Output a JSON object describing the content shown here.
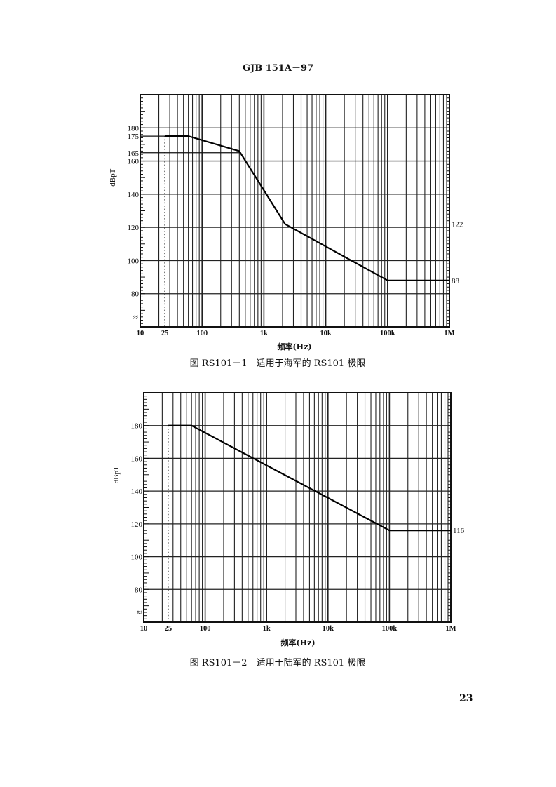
{
  "header": {
    "doc_id": "GJB 151A－97"
  },
  "page_number": "23",
  "chart_data": [
    {
      "type": "line",
      "caption": "图 RS101－1　适用于海军的 RS101 极限",
      "xlabel": "频率(Hz)",
      "ylabel": "dBpT",
      "x_scale": "log",
      "xlim": [
        10,
        1000000
      ],
      "ylim": [
        60,
        200
      ],
      "y_axis_break": true,
      "grid": true,
      "x_tick_labels": [
        {
          "v": 10,
          "t": "10"
        },
        {
          "v": 25,
          "t": "25"
        },
        {
          "v": 100,
          "t": "100"
        },
        {
          "v": 1000,
          "t": "1k"
        },
        {
          "v": 10000,
          "t": "10k"
        },
        {
          "v": 100000,
          "t": "100k"
        },
        {
          "v": 1000000,
          "t": "1M"
        }
      ],
      "y_tick_labels": [
        {
          "v": 80,
          "t": "80"
        },
        {
          "v": 100,
          "t": "100"
        },
        {
          "v": 120,
          "t": "120"
        },
        {
          "v": 140,
          "t": "140"
        },
        {
          "v": 160,
          "t": "160"
        },
        {
          "v": 165,
          "t": "165"
        },
        {
          "v": 175,
          "t": "175"
        },
        {
          "v": 180,
          "t": "180"
        }
      ],
      "right_labels": [
        {
          "v": 122,
          "t": "122"
        },
        {
          "v": 88,
          "t": "88"
        }
      ],
      "reference_lines": [
        165,
        175
      ],
      "dotted_marker_x": 25,
      "series": [
        {
          "x": [
            25,
            60,
            400,
            2200,
            100000,
            1000000
          ],
          "y": [
            175,
            175,
            166,
            122,
            88,
            88
          ]
        }
      ]
    },
    {
      "type": "line",
      "caption": "图 RS101－2　适用于陆军的 RS101 极限",
      "xlabel": "频率(Hz)",
      "ylabel": "dBpT",
      "x_scale": "log",
      "xlim": [
        10,
        1000000
      ],
      "ylim": [
        60,
        200
      ],
      "y_axis_break": true,
      "grid": true,
      "x_tick_labels": [
        {
          "v": 10,
          "t": "10"
        },
        {
          "v": 25,
          "t": "25"
        },
        {
          "v": 100,
          "t": "100"
        },
        {
          "v": 1000,
          "t": "1k"
        },
        {
          "v": 10000,
          "t": "10k"
        },
        {
          "v": 100000,
          "t": "100k"
        },
        {
          "v": 1000000,
          "t": "1M"
        }
      ],
      "y_tick_labels": [
        {
          "v": 80,
          "t": "80"
        },
        {
          "v": 100,
          "t": "100"
        },
        {
          "v": 120,
          "t": "120"
        },
        {
          "v": 140,
          "t": "140"
        },
        {
          "v": 160,
          "t": "160"
        },
        {
          "v": 180,
          "t": "180"
        }
      ],
      "right_labels": [
        {
          "v": 116,
          "t": "116"
        }
      ],
      "reference_lines": [],
      "dotted_marker_x": 25,
      "series": [
        {
          "x": [
            25,
            60,
            100000,
            1000000
          ],
          "y": [
            180,
            180,
            116,
            116
          ]
        }
      ]
    }
  ]
}
